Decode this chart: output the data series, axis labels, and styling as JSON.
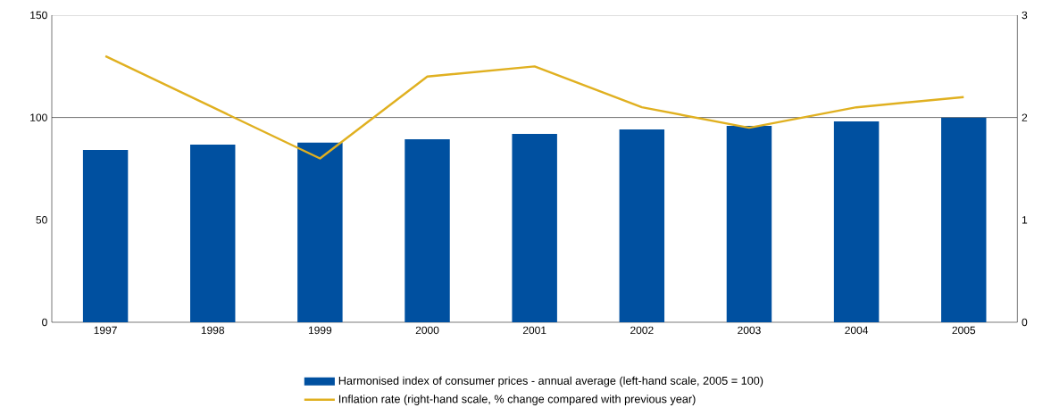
{
  "chart_data": {
    "type": "bar",
    "categories": [
      "1997",
      "1998",
      "1999",
      "2000",
      "2001",
      "2002",
      "2003",
      "2004",
      "2005"
    ],
    "series": [
      {
        "name": "Harmonised index of consumer prices - annual average (left-hand scale, 2005 = 100)",
        "color": "#0050a0",
        "values": [
          84.2,
          86.8,
          87.7,
          89.4,
          92.0,
          94.2,
          95.9,
          98.1,
          100
        ]
      },
      {
        "name": "Inflation rate (right-hand scale, % change compared with previous year)",
        "type": "line",
        "axis": "y2",
        "color": "#e0b020",
        "values": [
          2.6,
          2.1,
          1.6,
          2.4,
          2.5,
          2.1,
          1.9,
          2.1,
          2.2
        ]
      }
    ],
    "ylim": [
      0,
      150
    ],
    "yticks": [
      0,
      50,
      100,
      150
    ],
    "y2lim": [
      0,
      3
    ],
    "y2ticks": [
      0,
      1,
      2,
      3
    ],
    "ref_lines": [
      {
        "axis": "y",
        "value": 100,
        "color": "#000000"
      }
    ],
    "legend": "bottom"
  }
}
